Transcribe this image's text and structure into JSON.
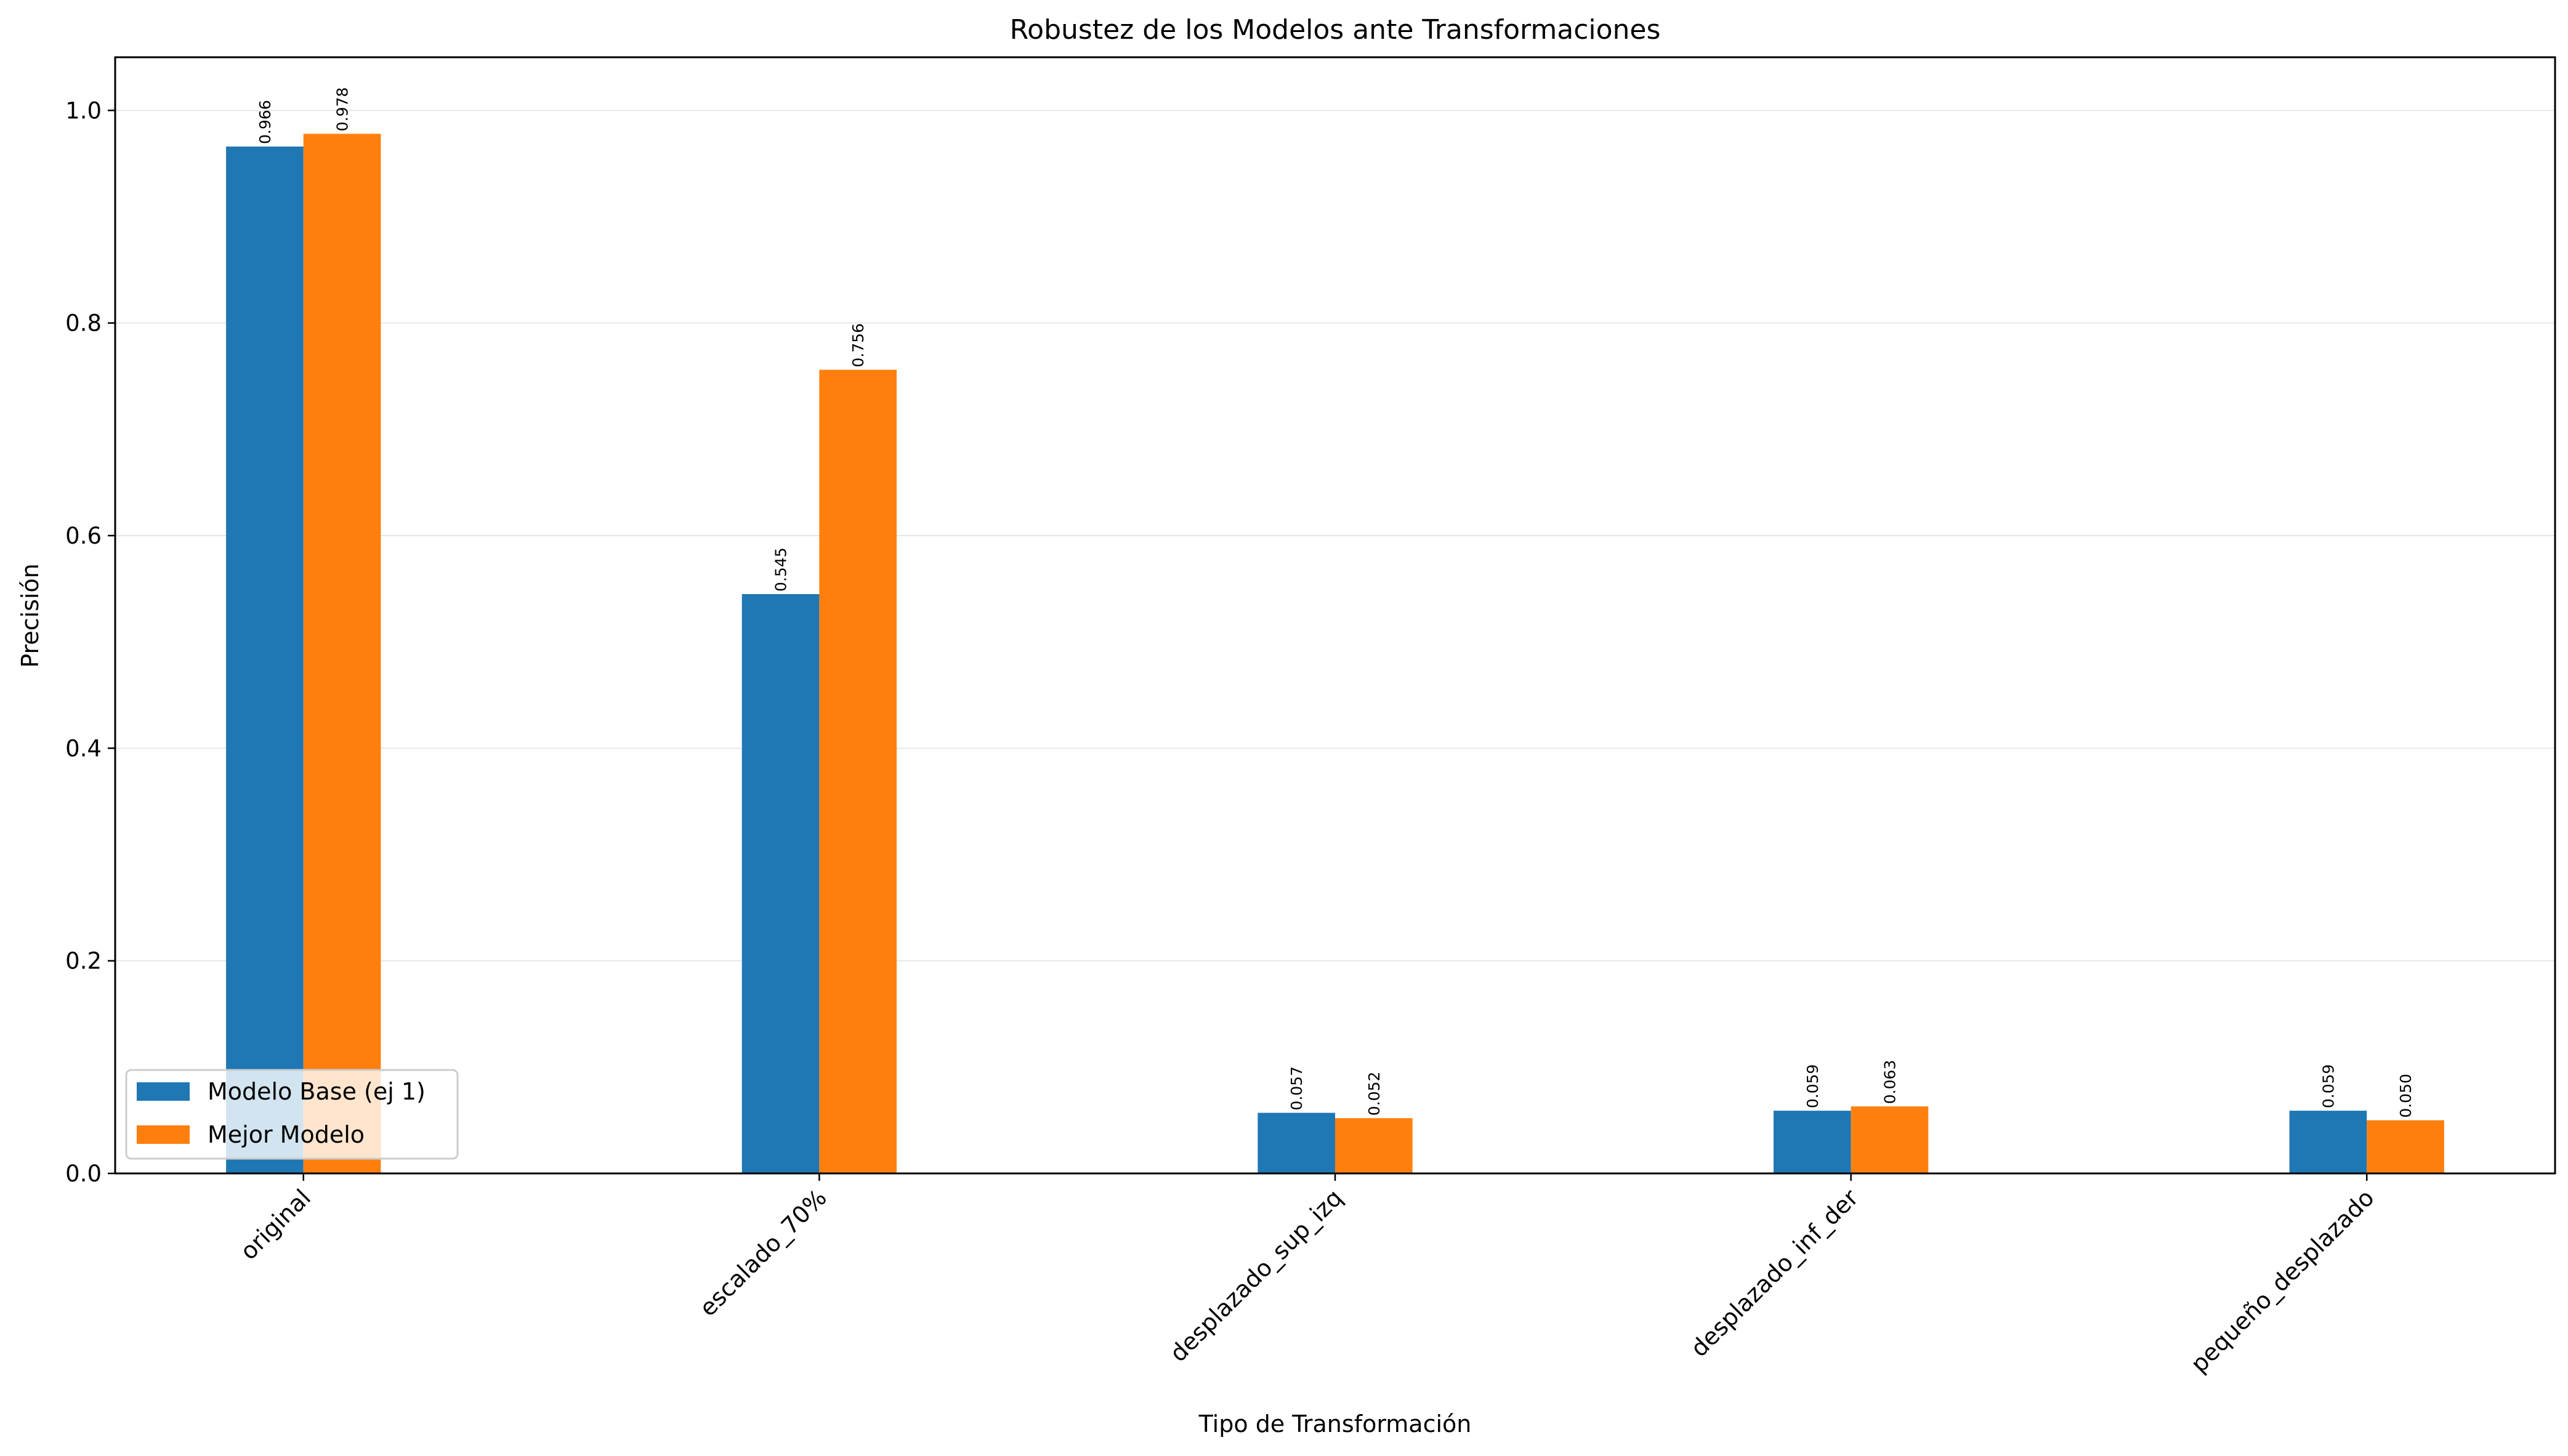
{
  "chart_data": {
    "type": "bar",
    "title": "Robustez de los Modelos ante Transformaciones",
    "xlabel": "Tipo de Transformación",
    "ylabel": "Precisión",
    "categories": [
      "original",
      "escalado_70%",
      "desplazado_sup_izq",
      "desplazado_inf_der",
      "pequeño_desplazado"
    ],
    "series": [
      {
        "name": "Modelo Base (ej 1)",
        "color": "#1f77b4",
        "values": [
          0.966,
          0.545,
          0.057,
          0.059,
          0.059
        ],
        "labels": [
          "0.966",
          "0.545",
          "0.057",
          "0.059",
          "0.059"
        ]
      },
      {
        "name": "Mejor Modelo",
        "color": "#ff7f0e",
        "values": [
          0.978,
          0.756,
          0.052,
          0.063,
          0.05
        ],
        "labels": [
          "0.978",
          "0.756",
          "0.052",
          "0.063",
          "0.050"
        ]
      }
    ],
    "ylim": [
      0,
      1.05
    ],
    "yticks": [
      "0.0",
      "0.2",
      "0.4",
      "0.6",
      "0.8",
      "1.0"
    ],
    "grid": "y",
    "legend_position": "lower-left"
  }
}
